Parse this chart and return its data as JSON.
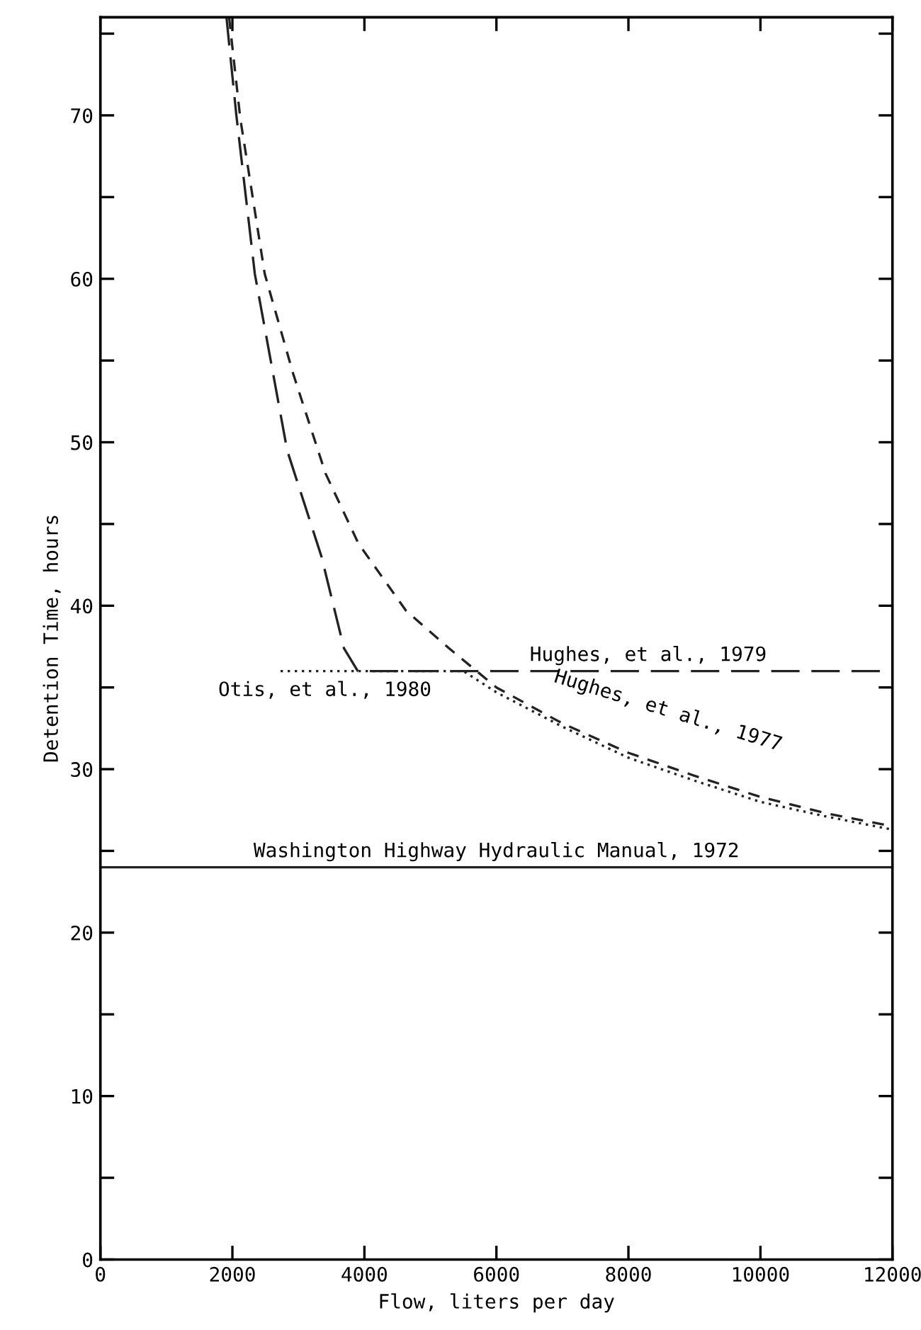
{
  "chart_data": {
    "type": "line",
    "xlabel": "Flow, liters per day",
    "ylabel": "Detention Time, hours",
    "xlim": [
      0,
      12000
    ],
    "ylim": [
      0,
      76
    ],
    "xticks": [
      0,
      2000,
      4000,
      6000,
      8000,
      10000,
      12000
    ],
    "yticks": [
      0,
      {
        "value": 5,
        "label": null
      },
      10,
      {
        "value": 15,
        "label": null
      },
      20,
      {
        "value": 25,
        "label": null
      },
      30,
      {
        "value": 35,
        "label": null
      },
      40,
      {
        "value": 45,
        "label": null
      },
      50,
      {
        "value": 55,
        "label": null
      },
      60,
      {
        "value": 65,
        "label": null
      },
      70,
      {
        "value": 75,
        "label": null
      }
    ],
    "grid": false,
    "legend": false,
    "series": [
      {
        "color": "#222222",
        "line_style": "long_dash",
        "x": [
          1910,
          2060,
          2340,
          2830,
          3350,
          3690,
          3900,
          12000
        ],
        "values": [
          76,
          70,
          60.3,
          49.5,
          43,
          37.4,
          36,
          36
        ]
      },
      {
        "color": "#222222",
        "line_style": "dashed",
        "x": [
          1950,
          2120,
          2490,
          2920,
          3410,
          3910,
          4630,
          5280,
          6000,
          7000,
          8000,
          9000,
          10000,
          11000,
          12000
        ],
        "values": [
          76,
          69.8,
          60.3,
          54.2,
          48.1,
          43.8,
          39.7,
          37.4,
          35,
          32.8,
          31,
          29.6,
          28.3,
          27.3,
          26.5
        ]
      },
      {
        "color": "#222222",
        "line_style": "dotted",
        "x": [
          2730,
          5500,
          6000,
          7000,
          8000,
          9000,
          10000,
          11000,
          12000
        ],
        "values": [
          36,
          36,
          34.7,
          32.6,
          30.7,
          29.3,
          28,
          27.1,
          26.3
        ]
      },
      {
        "color": "#222222",
        "line_style": "solid",
        "x": [
          0,
          12000
        ],
        "values": [
          24,
          24
        ]
      }
    ],
    "annotations": [
      {
        "text": "Hughes, et al., 1979",
        "x": 8300,
        "y": 36
      },
      {
        "text": "Otis, et al., 1980",
        "x": 3400,
        "y": 36
      },
      {
        "text": "Hughes, et al., 1977",
        "x": 8600,
        "y": 30.5
      },
      {
        "text": "Washington Highway Hydraulic Manual, 1972",
        "x": 6000,
        "y": 24
      }
    ]
  }
}
